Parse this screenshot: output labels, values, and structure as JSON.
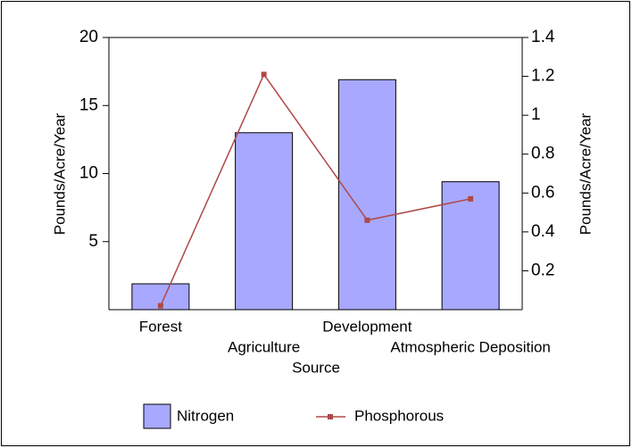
{
  "chart_data": {
    "type": "bar-line",
    "categories": [
      "Forest",
      "Agriculture",
      "Development",
      "Atmospheric Deposition"
    ],
    "x_label": "Source",
    "y_label": "Pounds/Acre/Year",
    "y2_label": "Pounds/Acre/Year",
    "series": [
      {
        "name": "Nitrogen",
        "type": "bar",
        "color": "#a8a8ff",
        "values": [
          1.9,
          13.0,
          16.9,
          9.4
        ]
      },
      {
        "name": "Phosphorous",
        "type": "line",
        "axis": "y2",
        "color": "#b04848",
        "values": [
          0.02,
          1.21,
          0.46,
          0.57
        ]
      }
    ],
    "ylim": [
      0,
      20
    ],
    "yticks": [
      5,
      10,
      15,
      20
    ],
    "y2lim": [
      0,
      1.4
    ],
    "y2ticks": [
      0.2,
      0.4,
      0.6,
      0.8,
      1,
      1.2,
      1.4
    ]
  }
}
